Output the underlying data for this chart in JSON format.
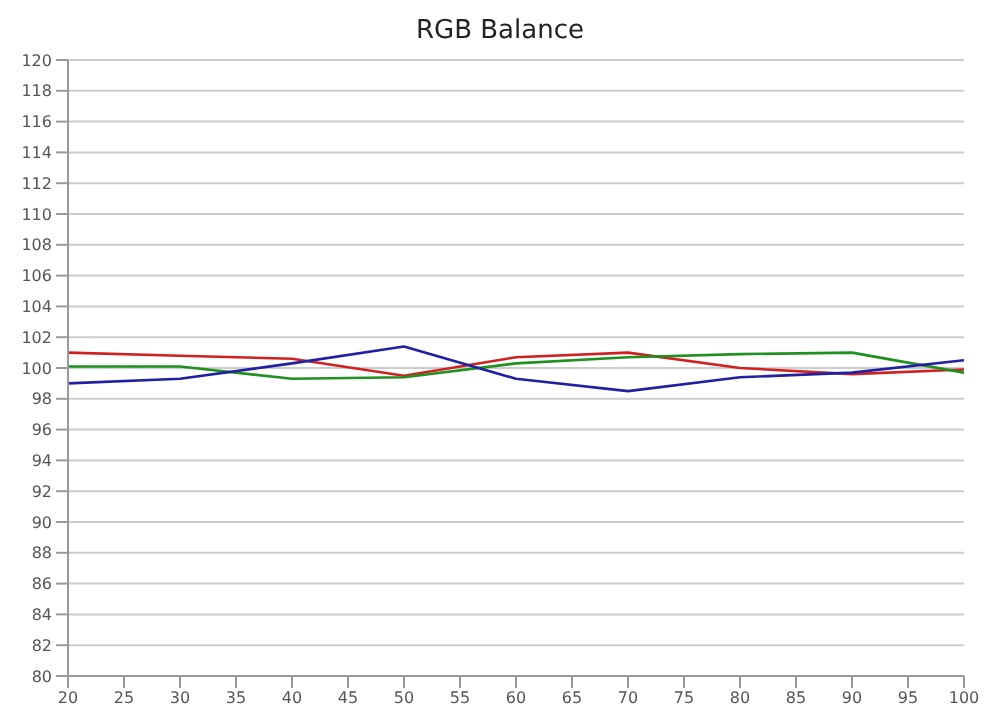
{
  "chart_data": {
    "type": "line",
    "title": "RGB Balance",
    "x": [
      20,
      30,
      40,
      50,
      60,
      70,
      80,
      90,
      100
    ],
    "series": [
      {
        "color": "#d02020",
        "values": [
          101.0,
          100.8,
          100.6,
          99.5,
          100.7,
          101.0,
          100.0,
          99.6,
          99.9
        ]
      },
      {
        "color": "#209020",
        "values": [
          100.1,
          100.1,
          99.3,
          99.4,
          100.3,
          100.7,
          100.9,
          101.0,
          99.7
        ]
      },
      {
        "color": "#2020a0",
        "values": [
          99.0,
          99.3,
          100.3,
          101.4,
          99.3,
          98.5,
          99.4,
          99.7,
          100.5
        ]
      }
    ],
    "xlim": [
      20,
      100
    ],
    "xticks": [
      20,
      25,
      30,
      35,
      40,
      45,
      50,
      55,
      60,
      65,
      70,
      75,
      80,
      85,
      90,
      95,
      100
    ],
    "ylim": [
      80,
      120
    ],
    "yticks": [
      80,
      82,
      84,
      86,
      88,
      90,
      92,
      94,
      96,
      98,
      100,
      102,
      104,
      106,
      108,
      110,
      112,
      114,
      116,
      118,
      120
    ],
    "grid": "y",
    "marker": "none",
    "line_style": "solid",
    "legend": false
  }
}
